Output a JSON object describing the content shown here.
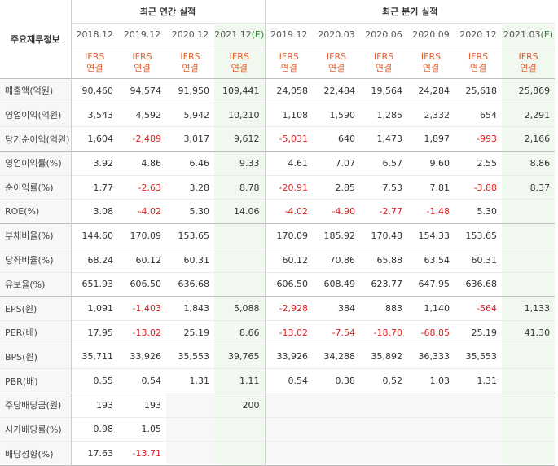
{
  "header": {
    "label_column": "주요재무정보",
    "annual_group": "최근 연간 실적",
    "quarter_group": "최근 분기 실적",
    "annual_periods": [
      {
        "label": "2018.12",
        "est": ""
      },
      {
        "label": "2019.12",
        "est": ""
      },
      {
        "label": "2020.12",
        "est": ""
      },
      {
        "label": "2021.12",
        "est": "(E)"
      }
    ],
    "quarter_periods": [
      {
        "label": "2019.12",
        "est": ""
      },
      {
        "label": "2020.03",
        "est": ""
      },
      {
        "label": "2020.06",
        "est": ""
      },
      {
        "label": "2020.09",
        "est": ""
      },
      {
        "label": "2020.12",
        "est": ""
      },
      {
        "label": "2021.03",
        "est": "(E)"
      }
    ],
    "basis_top": "IFRS",
    "basis_bottom": "연결"
  },
  "rows": [
    {
      "label": "매출액(억원)",
      "values": [
        "90,460",
        "94,574",
        "91,950",
        "109,441",
        "24,058",
        "22,484",
        "19,564",
        "24,284",
        "25,618",
        "25,869"
      ]
    },
    {
      "label": "영업이익(억원)",
      "values": [
        "3,543",
        "4,592",
        "5,942",
        "10,210",
        "1,108",
        "1,590",
        "1,285",
        "2,332",
        "654",
        "2,291"
      ]
    },
    {
      "label": "당기순이익(억원)",
      "values": [
        "1,604",
        "-2,489",
        "3,017",
        "9,612",
        "-5,031",
        "640",
        "1,473",
        "1,897",
        "-993",
        "2,166"
      ]
    },
    {
      "label": "영업이익률(%)",
      "values": [
        "3.92",
        "4.86",
        "6.46",
        "9.33",
        "4.61",
        "7.07",
        "6.57",
        "9.60",
        "2.55",
        "8.86"
      ]
    },
    {
      "label": "순이익률(%)",
      "values": [
        "1.77",
        "-2.63",
        "3.28",
        "8.78",
        "-20.91",
        "2.85",
        "7.53",
        "7.81",
        "-3.88",
        "8.37"
      ]
    },
    {
      "label": "ROE(%)",
      "values": [
        "3.08",
        "-4.02",
        "5.30",
        "14.06",
        "-4.02",
        "-4.90",
        "-2.77",
        "-1.48",
        "5.30",
        ""
      ]
    },
    {
      "label": "부채비율(%)",
      "values": [
        "144.60",
        "170.09",
        "153.65",
        "",
        "170.09",
        "185.92",
        "170.48",
        "154.33",
        "153.65",
        ""
      ]
    },
    {
      "label": "당좌비율(%)",
      "values": [
        "68.24",
        "60.12",
        "60.31",
        "",
        "60.12",
        "70.86",
        "65.88",
        "63.54",
        "60.31",
        ""
      ]
    },
    {
      "label": "유보율(%)",
      "values": [
        "651.93",
        "606.50",
        "636.68",
        "",
        "606.50",
        "608.49",
        "623.77",
        "647.95",
        "636.68",
        ""
      ]
    },
    {
      "label": "EPS(원)",
      "values": [
        "1,091",
        "-1,403",
        "1,843",
        "5,088",
        "-2,928",
        "384",
        "883",
        "1,140",
        "-564",
        "1,133"
      ]
    },
    {
      "label": "PER(배)",
      "values": [
        "17.95",
        "-13.02",
        "25.19",
        "8.66",
        "-13.02",
        "-7.54",
        "-18.70",
        "-68.85",
        "25.19",
        "41.30"
      ]
    },
    {
      "label": "BPS(원)",
      "values": [
        "35,711",
        "33,926",
        "35,553",
        "39,765",
        "33,926",
        "34,288",
        "35,892",
        "36,333",
        "35,553",
        ""
      ]
    },
    {
      "label": "PBR(배)",
      "values": [
        "0.55",
        "0.54",
        "1.31",
        "1.11",
        "0.54",
        "0.38",
        "0.52",
        "1.03",
        "1.31",
        ""
      ]
    },
    {
      "label": "주당배당금(원)",
      "values": [
        "193",
        "193",
        "",
        "200",
        "",
        "",
        "",
        "",
        "",
        ""
      ]
    },
    {
      "label": "시가배당률(%)",
      "values": [
        "0.98",
        "1.05",
        "",
        "",
        "",
        "",
        "",
        "",
        "",
        ""
      ]
    },
    {
      "label": "배당성향(%)",
      "values": [
        "17.63",
        "-13.71",
        "",
        "",
        "",
        "",
        "",
        "",
        "",
        ""
      ]
    }
  ],
  "group_starts": [
    0,
    3,
    6,
    9,
    13
  ],
  "colors": {
    "negative": "#e02020",
    "ifrs": "#e8612c",
    "estimate_bg": "#f1f8ef",
    "estimate_mark": "#2e7d32"
  }
}
